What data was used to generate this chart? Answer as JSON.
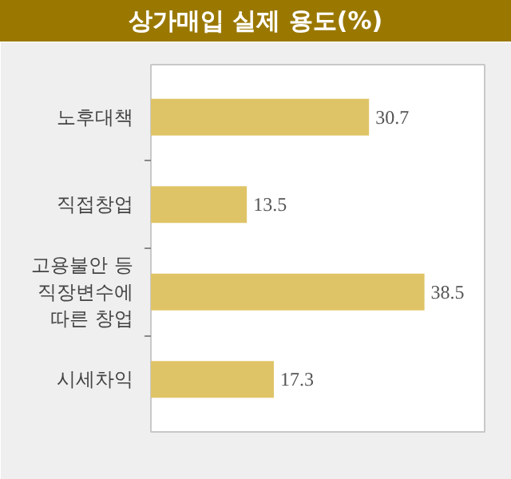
{
  "chart_data": {
    "type": "bar",
    "orientation": "horizontal",
    "title": "상가매입 실제 용도(%)",
    "categories": [
      "노후대책",
      "직접창업",
      "고용불안 등\n직장변수에\n따른 창업",
      "시세차익"
    ],
    "values": [
      30.7,
      13.5,
      38.5,
      17.3
    ],
    "color": "#dfc467",
    "data_labels": true
  }
}
